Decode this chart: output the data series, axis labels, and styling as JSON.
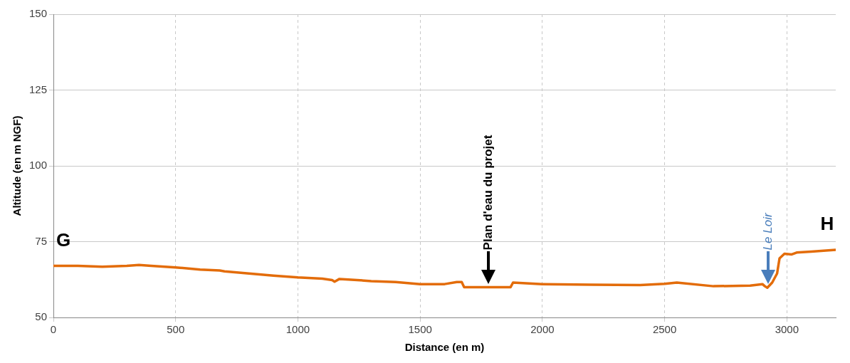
{
  "chart_data": {
    "type": "line",
    "xlabel": "Distance (en m)",
    "ylabel": "Altitude (en m NGF)",
    "xlim": [
      0,
      3200
    ],
    "xticks": [
      0,
      500,
      1000,
      1500,
      2000,
      2500,
      3000
    ],
    "ylim": [
      50,
      150
    ],
    "yticks": [
      50,
      75,
      100,
      125,
      150
    ],
    "grid": true,
    "legend": false,
    "marker": "none",
    "line_style": "solid",
    "series": [
      {
        "color": "#e36c0a",
        "x": [
          0,
          100,
          200,
          300,
          350,
          400,
          500,
          600,
          680,
          700,
          800,
          900,
          1000,
          1100,
          1140,
          1150,
          1170,
          1300,
          1400,
          1500,
          1600,
          1650,
          1670,
          1680,
          1870,
          1880,
          2000,
          2200,
          2400,
          2500,
          2550,
          2700,
          2850,
          2900,
          2910,
          2920,
          2940,
          2960,
          2970,
          2990,
          3020,
          3040,
          3100,
          3200
        ],
        "values": [
          67,
          67,
          66.7,
          67,
          67.3,
          67,
          66.5,
          65.8,
          65.5,
          65.2,
          64.5,
          63.8,
          63.2,
          62.8,
          62.3,
          61.8,
          62.7,
          62,
          61.7,
          61,
          61,
          61.7,
          61.7,
          60,
          60,
          61.5,
          61,
          60.8,
          60.7,
          61.1,
          61.5,
          60.3,
          60.5,
          61,
          60.3,
          59.8,
          61.5,
          64.5,
          69.5,
          71,
          70.8,
          71.4,
          71.7,
          72.3
        ]
      }
    ],
    "annotations": [
      {
        "text": "G",
        "x": 0,
        "y": 67
      },
      "Plan d'eau du projet",
      "Le Loir",
      {
        "text": "H",
        "x": 3200,
        "y": 72.3
      }
    ]
  }
}
